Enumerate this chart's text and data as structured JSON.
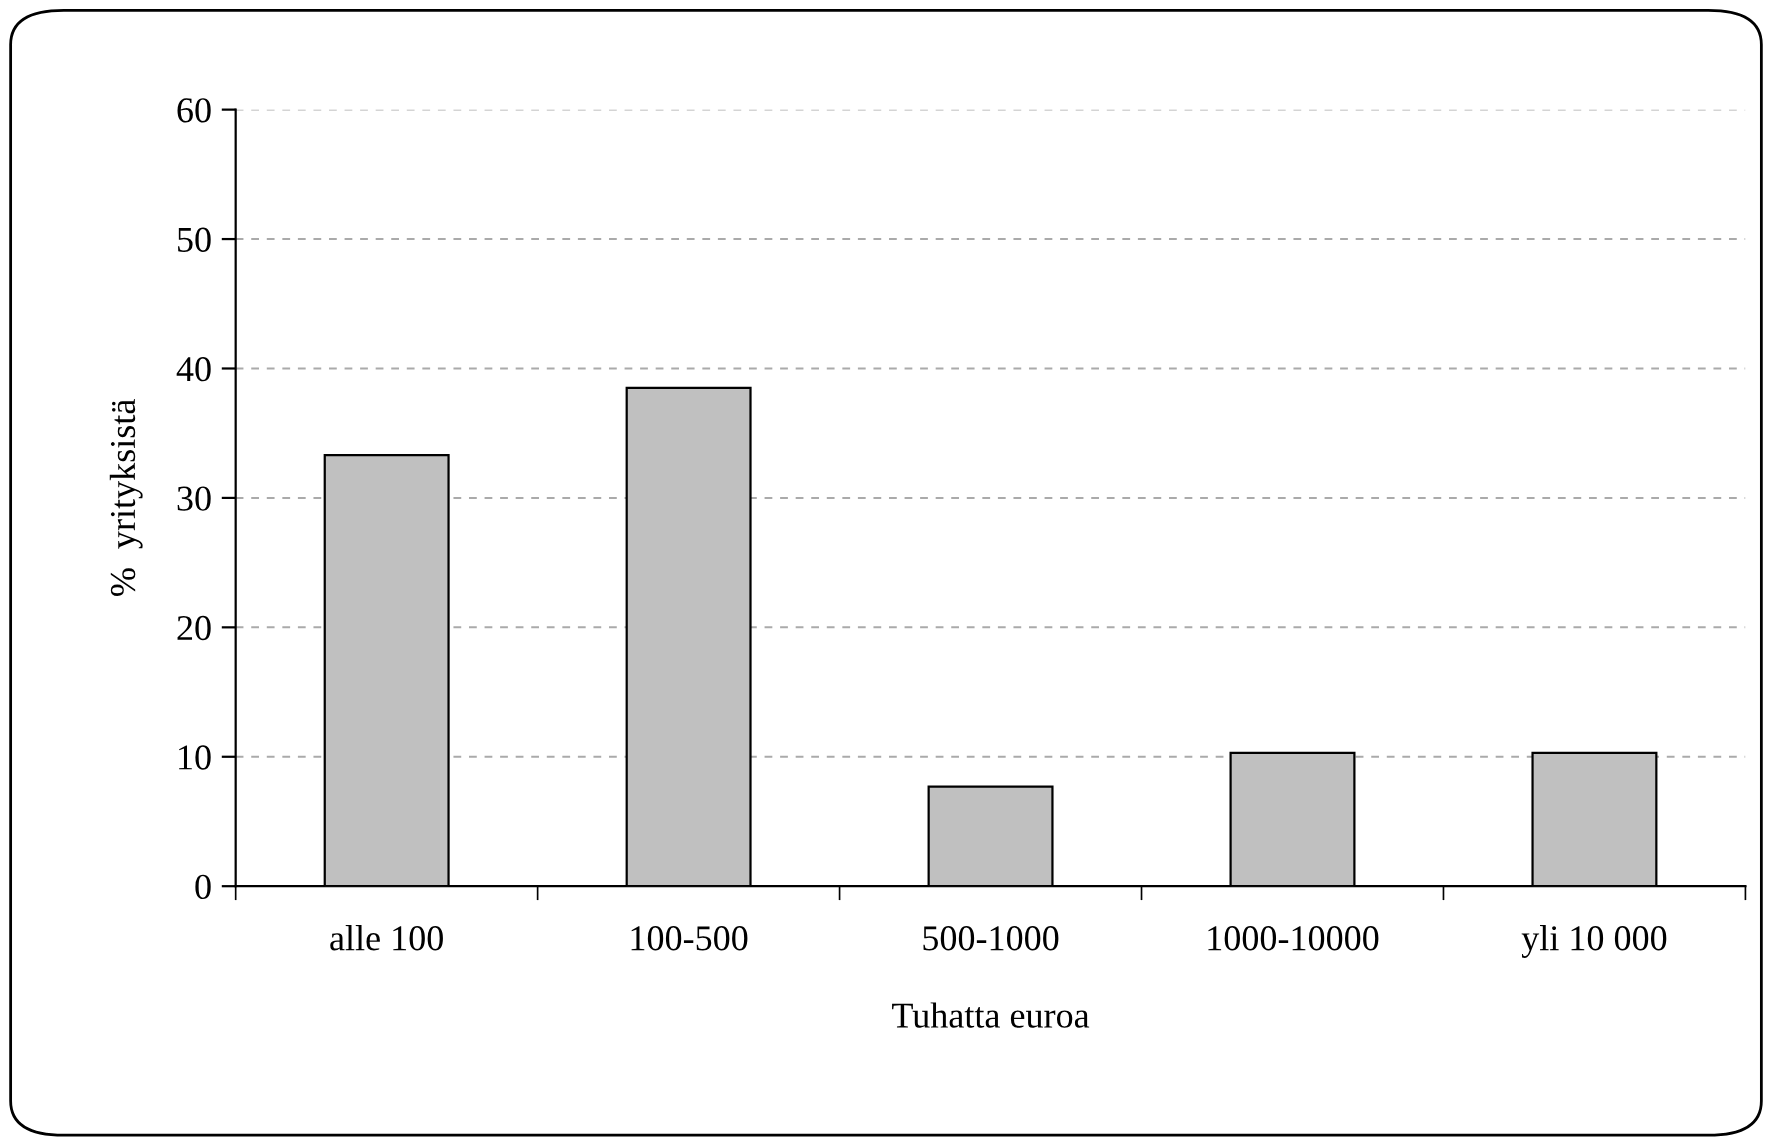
{
  "chart_data": {
    "type": "bar",
    "xlabel": "Tuhatta euroa",
    "ylabel": "%  yrityksistä",
    "categories": [
      "alle 100",
      "100-500",
      "500-1000",
      "1000-10000",
      "yli 10 000"
    ],
    "values": [
      33.3,
      38.5,
      7.7,
      10.3,
      10.3
    ],
    "color": "#c0c0c0",
    "ylim": [
      0,
      60
    ],
    "yticks": [
      0,
      10,
      20,
      30,
      40,
      50,
      60
    ],
    "grid": "y"
  }
}
